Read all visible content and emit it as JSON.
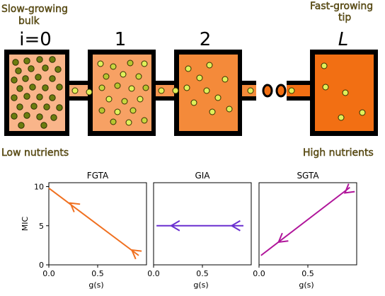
{
  "diagram": {
    "labels": {
      "left_top_line1": "Slow-growing",
      "left_top_line2": "bulk",
      "right_top_line1": "Fast-growing",
      "right_top_line2": "tip",
      "index_0": "i=0",
      "index_1": "1",
      "index_2": "2",
      "index_L": "L",
      "left_bottom": "Low nutrients",
      "right_bottom": "High nutrients"
    },
    "colors": {
      "chamber_outline": "#000000",
      "chamber_0_fill": "#f9b58a",
      "chamber_1_fill": "#f7a164",
      "chamber_2_fill": "#f48a3a",
      "chamber_L_fill": "#f26f13",
      "cell_slow": "#6b7d10",
      "cell_fast": "#e0f05a",
      "dot_fill": "#f26f13",
      "label_fill": "#6b5a1a"
    },
    "icons": [
      "ellipsis-dots-icon"
    ]
  },
  "chart_data": [
    {
      "type": "line",
      "title": "FGTA",
      "xlabel": "g(s)",
      "ylabel": "MIC",
      "xlim": [
        0,
        1
      ],
      "ylim": [
        0,
        10.5
      ],
      "x_ticks": [
        "0.0",
        "0.5"
      ],
      "y_ticks": [
        "0",
        "5",
        "10"
      ],
      "grid": false,
      "color": "#f07020",
      "x": [
        0.0,
        0.92
      ],
      "y": [
        9.8,
        1.2
      ],
      "arrows": [
        {
          "x": 0.22,
          "y": 7.9
        },
        {
          "x": 0.85,
          "y": 1.9
        }
      ]
    },
    {
      "type": "line",
      "title": "GIA",
      "xlabel": "g(s)",
      "ylabel": "",
      "xlim": [
        0,
        1
      ],
      "ylim": [
        0,
        10.5
      ],
      "x_ticks": [
        "0.0",
        "0.5"
      ],
      "y_ticks": [],
      "grid": false,
      "color": "#6a2fd0",
      "x": [
        0.03,
        0.92
      ],
      "y": [
        5.0,
        5.0
      ],
      "arrows": [
        {
          "x": 0.18,
          "y": 5.0
        },
        {
          "x": 0.8,
          "y": 5.0
        }
      ]
    },
    {
      "type": "line",
      "title": "SGTA",
      "xlabel": "g(s)",
      "ylabel": "",
      "xlim": [
        0,
        1
      ],
      "ylim": [
        0,
        10.5
      ],
      "x_ticks": [
        "0.0",
        "0.5"
      ],
      "y_ticks": [],
      "grid": false,
      "color": "#b0159a",
      "x": [
        0.02,
        0.93
      ],
      "y": [
        1.2,
        9.9
      ],
      "arrows": [
        {
          "x": 0.2,
          "y": 2.9
        },
        {
          "x": 0.88,
          "y": 9.2
        }
      ]
    }
  ]
}
